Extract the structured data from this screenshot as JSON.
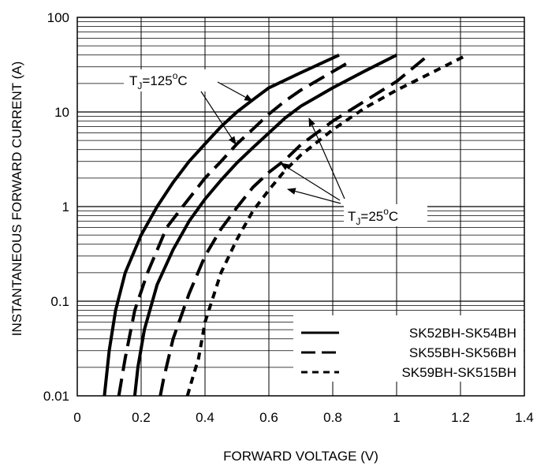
{
  "chart_data": {
    "type": "line",
    "xlabel": "FORWARD VOLTAGE (V)",
    "ylabel": "INSTANTANEOUS FORWARD CURRENT (A)",
    "x_scale": "linear",
    "y_scale": "log",
    "xlim": [
      0,
      1.4
    ],
    "ylim": [
      0.01,
      100
    ],
    "x_ticks": [
      "0",
      "0.2",
      "0.4",
      "0.6",
      "0.8",
      "1",
      "1.2",
      "1.4"
    ],
    "y_ticks": [
      "0.01",
      "0.1",
      "1",
      "10",
      "100"
    ],
    "grid": true,
    "legend_position": "bottom-right",
    "legend": [
      {
        "label": "SK52BH-SK54BH",
        "style": "solid"
      },
      {
        "label": "SK55BH-SK56BH",
        "style": "long-dash"
      },
      {
        "label": "SK59BH-SK515BH",
        "style": "short-dash"
      }
    ],
    "annotations": {
      "hot": {
        "base": "T",
        "sub": "J",
        "rest": "=125",
        "sup": "o",
        "unit": "C"
      },
      "cold": {
        "base": "T",
        "sub": "J",
        "rest": "=25",
        "sup": "o",
        "unit": "C"
      }
    },
    "series": [
      {
        "name": "SK52BH-SK54BH",
        "condition": "TJ=125°C",
        "style": "solid",
        "x": [
          0.085,
          0.1,
          0.12,
          0.15,
          0.2,
          0.25,
          0.3,
          0.35,
          0.4,
          0.45,
          0.5,
          0.55,
          0.6,
          0.7,
          0.82
        ],
        "y": [
          0.01,
          0.03,
          0.08,
          0.2,
          0.5,
          1.0,
          1.8,
          3.0,
          4.6,
          7.0,
          10,
          13.5,
          18,
          26,
          40
        ]
      },
      {
        "name": "SK55BH-SK56BH",
        "condition": "TJ=125°C",
        "style": "long-dash",
        "x": [
          0.13,
          0.15,
          0.18,
          0.22,
          0.28,
          0.33,
          0.4,
          0.45,
          0.5,
          0.55,
          0.6,
          0.65,
          0.7,
          0.86
        ],
        "y": [
          0.01,
          0.025,
          0.08,
          0.2,
          0.6,
          1.0,
          2.0,
          3.0,
          4.6,
          6.6,
          9.5,
          13,
          17,
          35
        ]
      },
      {
        "name": "SK52BH-SK54BH",
        "condition": "TJ=25°C",
        "style": "solid",
        "x": [
          0.18,
          0.19,
          0.21,
          0.25,
          0.3,
          0.35,
          0.4,
          0.45,
          0.5,
          0.55,
          0.6,
          0.65,
          0.7,
          0.8,
          0.9,
          1.0
        ],
        "y": [
          0.01,
          0.02,
          0.05,
          0.15,
          0.35,
          0.7,
          1.2,
          1.9,
          2.9,
          4.2,
          6.0,
          8.6,
          11.5,
          18,
          27,
          40
        ]
      },
      {
        "name": "SK55BH-SK56BH",
        "condition": "TJ=25°C",
        "style": "long-dash",
        "x": [
          0.26,
          0.27,
          0.3,
          0.35,
          0.4,
          0.45,
          0.5,
          0.55,
          0.6,
          0.65,
          0.7,
          0.8,
          0.9,
          1.0,
          1.1
        ],
        "y": [
          0.01,
          0.015,
          0.04,
          0.12,
          0.3,
          0.58,
          0.98,
          1.6,
          2.3,
          3.1,
          4.5,
          8.0,
          13,
          21,
          40
        ]
      },
      {
        "name": "SK59BH-SK515BH",
        "condition": "TJ=25°C",
        "style": "short-dash",
        "x": [
          0.345,
          0.36,
          0.38,
          0.4,
          0.45,
          0.5,
          0.55,
          0.6,
          0.65,
          0.7,
          0.8,
          0.9,
          1.0,
          1.1,
          1.22
        ],
        "y": [
          0.01,
          0.015,
          0.025,
          0.06,
          0.2,
          0.45,
          0.9,
          1.5,
          2.4,
          3.5,
          6.5,
          11,
          17,
          25,
          40
        ]
      }
    ]
  }
}
